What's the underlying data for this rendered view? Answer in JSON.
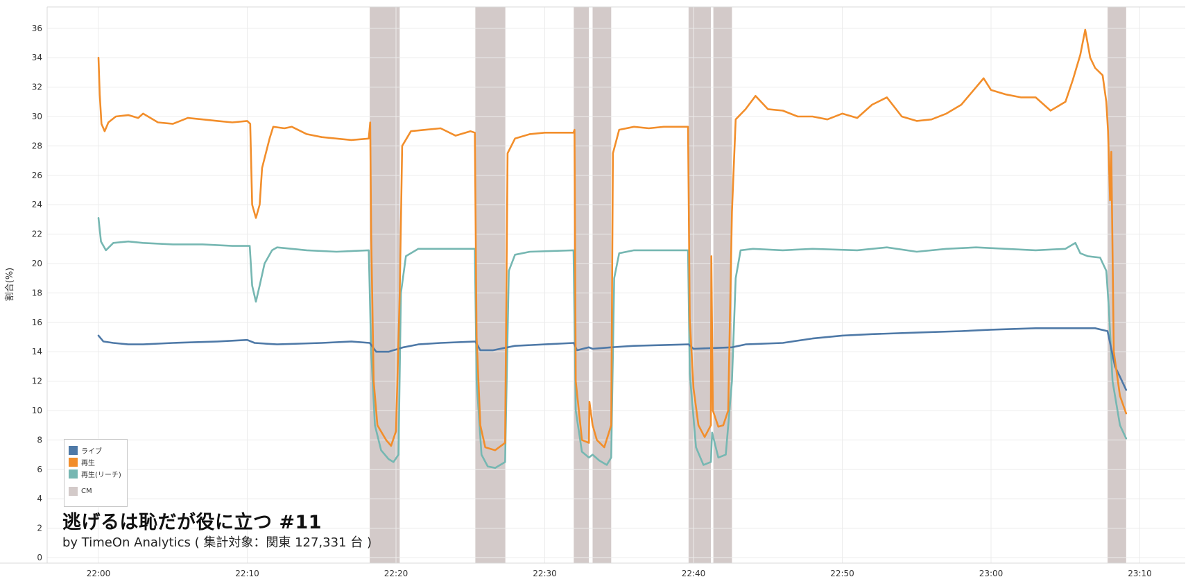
{
  "chart_data": {
    "type": "line",
    "title": "逃げるは恥だが役に立つ #11",
    "subtitle": "by TimeOn Analytics ( 集計対象：関東 127,331 台 )",
    "ylabel": "割合(%)",
    "ylim": [
      0,
      37
    ],
    "yticks": [
      "0",
      "2",
      "4",
      "6",
      "8",
      "10",
      "12",
      "14",
      "16",
      "18",
      "20",
      "22",
      "24",
      "26",
      "28",
      "30",
      "32",
      "34",
      "36"
    ],
    "xlim": [
      "21:56",
      "23:12"
    ],
    "xticks": [
      "22:00",
      "22:10",
      "22:20",
      "22:30",
      "22:40",
      "22:50",
      "23:00",
      "23:10"
    ],
    "grid": true,
    "legend_position": "bottom-left",
    "cm_color": "#d3cac9",
    "cm_breaks": [
      {
        "start": "22:18:14",
        "end": "22:20:15"
      },
      {
        "start": "22:25:20",
        "end": "22:27:21"
      },
      {
        "start": "22:31:57",
        "end": "22:32:58"
      },
      {
        "start": "22:33:13",
        "end": "22:34:28"
      },
      {
        "start": "22:39:40",
        "end": "22:41:10"
      },
      {
        "start": "22:41:20",
        "end": "22:42:35"
      },
      {
        "start": "23:07:50",
        "end": "23:09:05"
      }
    ],
    "series": [
      {
        "name": "ライブ",
        "color": "#4e79a7",
        "points": [
          [
            "22:00:00",
            15.1
          ],
          [
            "22:00:20",
            14.7
          ],
          [
            "22:01:00",
            14.6
          ],
          [
            "22:02:00",
            14.5
          ],
          [
            "22:03:00",
            14.5
          ],
          [
            "22:05:00",
            14.6
          ],
          [
            "22:08:00",
            14.7
          ],
          [
            "22:10:00",
            14.8
          ],
          [
            "22:10:30",
            14.6
          ],
          [
            "22:12:00",
            14.5
          ],
          [
            "22:15:00",
            14.6
          ],
          [
            "22:17:00",
            14.7
          ],
          [
            "22:18:14",
            14.6
          ],
          [
            "22:18:40",
            14.0
          ],
          [
            "22:19:30",
            14.0
          ],
          [
            "22:20:30",
            14.3
          ],
          [
            "22:21:30",
            14.5
          ],
          [
            "22:23:00",
            14.6
          ],
          [
            "22:25:20",
            14.7
          ],
          [
            "22:25:40",
            14.1
          ],
          [
            "22:26:30",
            14.1
          ],
          [
            "22:28:00",
            14.4
          ],
          [
            "22:30:00",
            14.5
          ],
          [
            "22:31:57",
            14.6
          ],
          [
            "22:32:10",
            14.1
          ],
          [
            "22:32:58",
            14.3
          ],
          [
            "22:33:13",
            14.2
          ],
          [
            "22:34:28",
            14.3
          ],
          [
            "22:36:00",
            14.4
          ],
          [
            "22:39:40",
            14.5
          ],
          [
            "22:40:00",
            14.2
          ],
          [
            "22:42:35",
            14.3
          ],
          [
            "22:43:30",
            14.5
          ],
          [
            "22:46:00",
            14.6
          ],
          [
            "22:48:00",
            14.9
          ],
          [
            "22:50:00",
            15.1
          ],
          [
            "22:52:00",
            15.2
          ],
          [
            "22:55:00",
            15.3
          ],
          [
            "22:58:00",
            15.4
          ],
          [
            "23:00:00",
            15.5
          ],
          [
            "23:03:00",
            15.6
          ],
          [
            "23:06:00",
            15.6
          ],
          [
            "23:07:00",
            15.6
          ],
          [
            "23:07:50",
            15.4
          ],
          [
            "23:08:00",
            14.6
          ],
          [
            "23:08:20",
            13.0
          ],
          [
            "23:08:40",
            12.3
          ],
          [
            "23:09:05",
            11.4
          ]
        ]
      },
      {
        "name": "再生",
        "color": "#f28e2b",
        "points": [
          [
            "22:00:00",
            34.0
          ],
          [
            "22:00:05",
            31.5
          ],
          [
            "22:00:12",
            29.5
          ],
          [
            "22:00:25",
            29.0
          ],
          [
            "22:00:40",
            29.6
          ],
          [
            "22:01:10",
            30.0
          ],
          [
            "22:02:00",
            30.1
          ],
          [
            "22:02:40",
            29.9
          ],
          [
            "22:03:00",
            30.2
          ],
          [
            "22:04:00",
            29.6
          ],
          [
            "22:05:00",
            29.5
          ],
          [
            "22:06:00",
            29.9
          ],
          [
            "22:07:00",
            29.8
          ],
          [
            "22:08:00",
            29.7
          ],
          [
            "22:09:00",
            29.6
          ],
          [
            "22:10:00",
            29.7
          ],
          [
            "22:10:12",
            29.5
          ],
          [
            "22:10:20",
            24.0
          ],
          [
            "22:10:35",
            23.1
          ],
          [
            "22:10:50",
            24.0
          ],
          [
            "22:11:00",
            26.5
          ],
          [
            "22:11:30",
            28.5
          ],
          [
            "22:11:45",
            29.3
          ],
          [
            "22:12:30",
            29.2
          ],
          [
            "22:13:00",
            29.3
          ],
          [
            "22:14:00",
            28.8
          ],
          [
            "22:15:00",
            28.6
          ],
          [
            "22:16:00",
            28.5
          ],
          [
            "22:17:00",
            28.4
          ],
          [
            "22:18:10",
            28.5
          ],
          [
            "22:18:16",
            29.6
          ],
          [
            "22:18:20",
            22.0
          ],
          [
            "22:18:30",
            12.0
          ],
          [
            "22:18:45",
            9.0
          ],
          [
            "22:19:20",
            8.0
          ],
          [
            "22:19:40",
            7.6
          ],
          [
            "22:20:00",
            8.6
          ],
          [
            "22:20:15",
            18.0
          ],
          [
            "22:20:25",
            28.0
          ],
          [
            "22:21:00",
            29.0
          ],
          [
            "22:22:00",
            29.1
          ],
          [
            "22:23:00",
            29.2
          ],
          [
            "22:24:00",
            28.7
          ],
          [
            "22:25:00",
            29.0
          ],
          [
            "22:25:18",
            28.9
          ],
          [
            "22:25:25",
            15.0
          ],
          [
            "22:25:40",
            9.0
          ],
          [
            "22:26:00",
            7.5
          ],
          [
            "22:26:40",
            7.3
          ],
          [
            "22:27:20",
            7.8
          ],
          [
            "22:27:30",
            27.5
          ],
          [
            "22:28:00",
            28.5
          ],
          [
            "22:29:00",
            28.8
          ],
          [
            "22:30:00",
            28.9
          ],
          [
            "22:31:56",
            28.9
          ],
          [
            "22:32:00",
            29.1
          ],
          [
            "22:32:05",
            12.0
          ],
          [
            "22:32:30",
            8.0
          ],
          [
            "22:32:58",
            7.8
          ],
          [
            "22:33:00",
            10.6
          ],
          [
            "22:33:13",
            9.0
          ],
          [
            "22:33:30",
            8.0
          ],
          [
            "22:34:00",
            7.5
          ],
          [
            "22:34:28",
            9.0
          ],
          [
            "22:34:35",
            27.5
          ],
          [
            "22:35:00",
            29.1
          ],
          [
            "22:36:00",
            29.3
          ],
          [
            "22:37:00",
            29.2
          ],
          [
            "22:38:00",
            29.3
          ],
          [
            "22:39:38",
            29.3
          ],
          [
            "22:39:45",
            16.2
          ],
          [
            "22:40:00",
            11.5
          ],
          [
            "22:40:20",
            9.0
          ],
          [
            "22:40:45",
            8.2
          ],
          [
            "22:41:10",
            9.0
          ],
          [
            "22:41:12",
            20.5
          ],
          [
            "22:41:18",
            10.0
          ],
          [
            "22:41:40",
            8.9
          ],
          [
            "22:42:00",
            9.0
          ],
          [
            "22:42:20",
            10.0
          ],
          [
            "22:42:35",
            23.5
          ],
          [
            "22:42:50",
            29.8
          ],
          [
            "22:43:30",
            30.5
          ],
          [
            "22:44:10",
            31.4
          ],
          [
            "22:45:00",
            30.5
          ],
          [
            "22:46:00",
            30.4
          ],
          [
            "22:47:00",
            30.0
          ],
          [
            "22:48:00",
            30.0
          ],
          [
            "22:49:00",
            29.8
          ],
          [
            "22:50:00",
            30.2
          ],
          [
            "22:51:00",
            29.9
          ],
          [
            "22:52:00",
            30.8
          ],
          [
            "22:53:00",
            31.3
          ],
          [
            "22:54:00",
            30.0
          ],
          [
            "22:55:00",
            29.7
          ],
          [
            "22:56:00",
            29.8
          ],
          [
            "22:57:00",
            30.2
          ],
          [
            "22:58:00",
            30.8
          ],
          [
            "22:59:30",
            32.6
          ],
          [
            "23:00:00",
            31.8
          ],
          [
            "23:01:00",
            31.5
          ],
          [
            "23:02:00",
            31.3
          ],
          [
            "23:03:00",
            31.3
          ],
          [
            "23:04:00",
            30.4
          ],
          [
            "23:05:00",
            31.0
          ],
          [
            "23:05:30",
            32.5
          ],
          [
            "23:06:00",
            34.2
          ],
          [
            "23:06:20",
            35.9
          ],
          [
            "23:06:40",
            34.0
          ],
          [
            "23:07:00",
            33.3
          ],
          [
            "23:07:30",
            32.8
          ],
          [
            "23:07:45",
            31.0
          ],
          [
            "23:07:52",
            29.0
          ],
          [
            "23:08:00",
            24.3
          ],
          [
            "23:08:05",
            27.6
          ],
          [
            "23:08:15",
            14.0
          ],
          [
            "23:08:40",
            11.0
          ],
          [
            "23:09:05",
            9.8
          ]
        ]
      },
      {
        "name": "再生(リーチ)",
        "color": "#76b7b2",
        "points": [
          [
            "22:00:00",
            23.1
          ],
          [
            "22:00:10",
            21.5
          ],
          [
            "22:00:30",
            20.9
          ],
          [
            "22:01:00",
            21.4
          ],
          [
            "22:02:00",
            21.5
          ],
          [
            "22:03:00",
            21.4
          ],
          [
            "22:05:00",
            21.3
          ],
          [
            "22:07:00",
            21.3
          ],
          [
            "22:09:00",
            21.2
          ],
          [
            "22:10:10",
            21.2
          ],
          [
            "22:10:20",
            18.5
          ],
          [
            "22:10:35",
            17.4
          ],
          [
            "22:10:50",
            18.5
          ],
          [
            "22:11:10",
            20.0
          ],
          [
            "22:11:40",
            20.9
          ],
          [
            "22:12:00",
            21.1
          ],
          [
            "22:14:00",
            20.9
          ],
          [
            "22:16:00",
            20.8
          ],
          [
            "22:18:10",
            20.9
          ],
          [
            "22:18:20",
            14.0
          ],
          [
            "22:18:35",
            9.0
          ],
          [
            "22:19:00",
            7.3
          ],
          [
            "22:19:30",
            6.7
          ],
          [
            "22:19:50",
            6.5
          ],
          [
            "22:20:10",
            7.0
          ],
          [
            "22:20:20",
            18.0
          ],
          [
            "22:20:40",
            20.5
          ],
          [
            "22:21:30",
            21.0
          ],
          [
            "22:23:00",
            21.0
          ],
          [
            "22:25:18",
            21.0
          ],
          [
            "22:25:25",
            12.0
          ],
          [
            "22:25:45",
            7.0
          ],
          [
            "22:26:10",
            6.2
          ],
          [
            "22:26:40",
            6.1
          ],
          [
            "22:27:20",
            6.5
          ],
          [
            "22:27:35",
            19.5
          ],
          [
            "22:28:00",
            20.6
          ],
          [
            "22:29:00",
            20.8
          ],
          [
            "22:31:56",
            20.9
          ],
          [
            "22:32:05",
            10.0
          ],
          [
            "22:32:30",
            7.2
          ],
          [
            "22:32:58",
            6.8
          ],
          [
            "22:33:13",
            7.0
          ],
          [
            "22:33:40",
            6.6
          ],
          [
            "22:34:10",
            6.3
          ],
          [
            "22:34:28",
            6.8
          ],
          [
            "22:34:40",
            19.0
          ],
          [
            "22:35:00",
            20.7
          ],
          [
            "22:36:00",
            20.9
          ],
          [
            "22:39:38",
            20.9
          ],
          [
            "22:39:45",
            12.5
          ],
          [
            "22:40:10",
            7.5
          ],
          [
            "22:40:40",
            6.3
          ],
          [
            "22:41:10",
            6.5
          ],
          [
            "22:41:15",
            8.5
          ],
          [
            "22:41:40",
            6.8
          ],
          [
            "22:42:10",
            7.0
          ],
          [
            "22:42:35",
            12.0
          ],
          [
            "22:42:50",
            19.0
          ],
          [
            "22:43:10",
            20.9
          ],
          [
            "22:44:00",
            21.0
          ],
          [
            "22:46:00",
            20.9
          ],
          [
            "22:48:00",
            21.0
          ],
          [
            "22:51:00",
            20.9
          ],
          [
            "22:53:00",
            21.1
          ],
          [
            "22:55:00",
            20.8
          ],
          [
            "22:57:00",
            21.0
          ],
          [
            "22:59:00",
            21.1
          ],
          [
            "23:01:00",
            21.0
          ],
          [
            "23:03:00",
            20.9
          ],
          [
            "23:05:00",
            21.0
          ],
          [
            "23:05:40",
            21.4
          ],
          [
            "23:06:00",
            20.7
          ],
          [
            "23:06:30",
            20.5
          ],
          [
            "23:07:20",
            20.4
          ],
          [
            "23:07:45",
            19.5
          ],
          [
            "23:07:55",
            17.0
          ],
          [
            "23:08:10",
            12.0
          ],
          [
            "23:08:40",
            9.0
          ],
          [
            "23:09:05",
            8.1
          ]
        ]
      }
    ]
  },
  "legend": {
    "cm_label": "CM"
  }
}
